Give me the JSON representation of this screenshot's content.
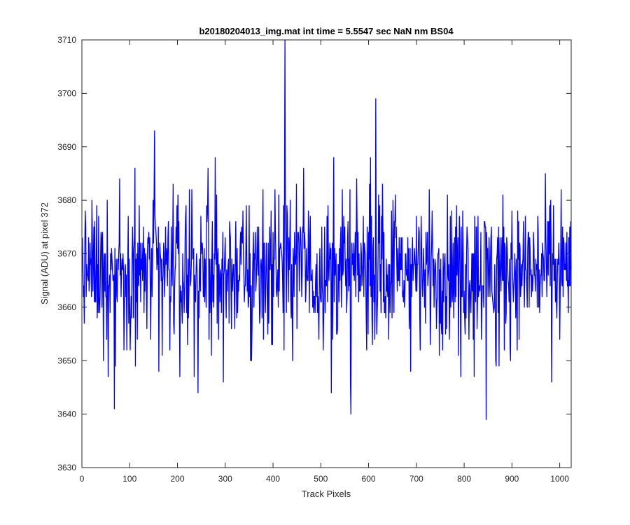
{
  "chart_data": {
    "type": "line",
    "title": "b20180204013_img.mat int time = 5.5547 sec  NaN nm BS04",
    "xlabel": "Track Pixels",
    "ylabel": "Signal (ADU) at pixel 372",
    "xlim": [
      0,
      1024
    ],
    "ylim": [
      3630,
      3710
    ],
    "xticks": [
      0,
      100,
      200,
      300,
      400,
      500,
      600,
      700,
      800,
      900,
      1000
    ],
    "yticks": [
      3630,
      3640,
      3650,
      3660,
      3670,
      3680,
      3690,
      3700,
      3710
    ],
    "grid": false,
    "line_color": "#0000ff",
    "series": [
      {
        "x_start": 1,
        "x_step": 1,
        "n_points": 1024,
        "mean_level": 3667,
        "typical_range": [
          3655,
          3683
        ],
        "notable_points": [
          {
            "x": 68,
            "y": 3641
          },
          {
            "x": 152,
            "y": 3693
          },
          {
            "x": 243,
            "y": 3644
          },
          {
            "x": 425,
            "y": 3710
          },
          {
            "x": 522,
            "y": 3644
          },
          {
            "x": 563,
            "y": 3640
          },
          {
            "x": 615,
            "y": 3699
          },
          {
            "x": 846,
            "y": 3639
          }
        ]
      }
    ]
  }
}
